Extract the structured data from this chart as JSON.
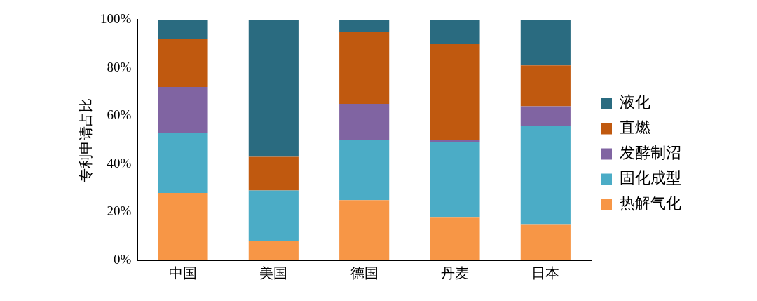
{
  "chart_data": {
    "type": "bar",
    "stacked": true,
    "ylabel": "专利申请占比",
    "categories": [
      "中国",
      "美国",
      "德国",
      "丹麦",
      "日本"
    ],
    "series": [
      {
        "name": "热解气化",
        "color": "#f79646",
        "values": [
          28,
          8,
          25,
          18,
          15
        ]
      },
      {
        "name": "固化成型",
        "color": "#4bacc6",
        "values": [
          25,
          21,
          25,
          31,
          41
        ]
      },
      {
        "name": "发酵制沼",
        "color": "#8064a2",
        "values": [
          19,
          0,
          15,
          1,
          8
        ]
      },
      {
        "name": "直燃",
        "color": "#c0590f",
        "values": [
          20,
          14,
          30,
          40,
          17
        ]
      },
      {
        "name": "液化",
        "color": "#2a6b80",
        "values": [
          8,
          57,
          5,
          10,
          19
        ]
      }
    ],
    "ylim": [
      0,
      100
    ],
    "yticks": [
      {
        "value": 0,
        "label": "0%"
      },
      {
        "value": 20,
        "label": "20%"
      },
      {
        "value": 40,
        "label": "40%"
      },
      {
        "value": 60,
        "label": "60%"
      },
      {
        "value": 80,
        "label": "80%"
      },
      {
        "value": 100,
        "label": "100%"
      }
    ],
    "grid": false,
    "legend": "right"
  }
}
